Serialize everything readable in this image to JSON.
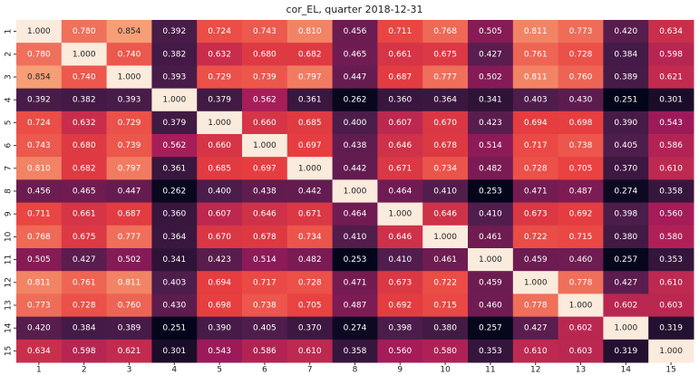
{
  "chart_data": {
    "type": "heatmap",
    "title": "cor_EL, quarter 2018-12-31",
    "categories": [
      "1",
      "2",
      "3",
      "4",
      "5",
      "6",
      "7",
      "8",
      "9",
      "10",
      "11",
      "12",
      "13",
      "14",
      "15"
    ],
    "y_categories": [
      "1",
      "2",
      "3",
      "4",
      "5",
      "6",
      "7",
      "8",
      "9",
      "10",
      "11",
      "12",
      "13",
      "14",
      "15"
    ],
    "colorscale": [
      "#03051a",
      "#4c1d4b",
      "#a11a5b",
      "#e83f3f",
      "#f69c73",
      "#faebdd"
    ],
    "values": [
      [
        1.0,
        0.78,
        0.854,
        0.392,
        0.724,
        0.743,
        0.81,
        0.456,
        0.711,
        0.768,
        0.505,
        0.811,
        0.773,
        0.42,
        0.634
      ],
      [
        0.78,
        1.0,
        0.74,
        0.382,
        0.632,
        0.68,
        0.682,
        0.465,
        0.661,
        0.675,
        0.427,
        0.761,
        0.728,
        0.384,
        0.598
      ],
      [
        0.854,
        0.74,
        1.0,
        0.393,
        0.729,
        0.739,
        0.797,
        0.447,
        0.687,
        0.777,
        0.502,
        0.811,
        0.76,
        0.389,
        0.621
      ],
      [
        0.392,
        0.382,
        0.393,
        1.0,
        0.379,
        0.562,
        0.361,
        0.262,
        0.36,
        0.364,
        0.341,
        0.403,
        0.43,
        0.251,
        0.301
      ],
      [
        0.724,
        0.632,
        0.729,
        0.379,
        1.0,
        0.66,
        0.685,
        0.4,
        0.607,
        0.67,
        0.423,
        0.694,
        0.698,
        0.39,
        0.543
      ],
      [
        0.743,
        0.68,
        0.739,
        0.562,
        0.66,
        1.0,
        0.697,
        0.438,
        0.646,
        0.678,
        0.514,
        0.717,
        0.738,
        0.405,
        0.586
      ],
      [
        0.81,
        0.682,
        0.797,
        0.361,
        0.685,
        0.697,
        1.0,
        0.442,
        0.671,
        0.734,
        0.482,
        0.728,
        0.705,
        0.37,
        0.61
      ],
      [
        0.456,
        0.465,
        0.447,
        0.262,
        0.4,
        0.438,
        0.442,
        1.0,
        0.464,
        0.41,
        0.253,
        0.471,
        0.487,
        0.274,
        0.358
      ],
      [
        0.711,
        0.661,
        0.687,
        0.36,
        0.607,
        0.646,
        0.671,
        0.464,
        1.0,
        0.646,
        0.41,
        0.673,
        0.692,
        0.398,
        0.56
      ],
      [
        0.768,
        0.675,
        0.777,
        0.364,
        0.67,
        0.678,
        0.734,
        0.41,
        0.646,
        1.0,
        0.461,
        0.722,
        0.715,
        0.38,
        0.58
      ],
      [
        0.505,
        0.427,
        0.502,
        0.341,
        0.423,
        0.514,
        0.482,
        0.253,
        0.41,
        0.461,
        1.0,
        0.459,
        0.46,
        0.257,
        0.353
      ],
      [
        0.811,
        0.761,
        0.811,
        0.403,
        0.694,
        0.717,
        0.728,
        0.471,
        0.673,
        0.722,
        0.459,
        1.0,
        0.778,
        0.427,
        0.61
      ],
      [
        0.773,
        0.728,
        0.76,
        0.43,
        0.698,
        0.738,
        0.705,
        0.487,
        0.692,
        0.715,
        0.46,
        0.778,
        1.0,
        0.602,
        0.603
      ],
      [
        0.42,
        0.384,
        0.389,
        0.251,
        0.39,
        0.405,
        0.37,
        0.274,
        0.398,
        0.38,
        0.257,
        0.427,
        0.602,
        1.0,
        0.319
      ],
      [
        0.634,
        0.598,
        0.621,
        0.301,
        0.543,
        0.586,
        0.61,
        0.358,
        0.56,
        0.58,
        0.353,
        0.61,
        0.603,
        0.319,
        1.0
      ]
    ],
    "value_labels": [
      [
        "1.000",
        "0.780",
        "0.854",
        "0.392",
        "0.724",
        "0.743",
        "0.810",
        "0.456",
        "0.711",
        "0.768",
        "0.505",
        "0.811",
        "0.773",
        "0.420",
        "0.634"
      ],
      [
        "0.780",
        "1.000",
        "0.740",
        "0.382",
        "0.632",
        "0.680",
        "0.682",
        "0.465",
        "0.661",
        "0.675",
        "0.427",
        "0.761",
        "0.728",
        "0.384",
        "0.598"
      ],
      [
        "0.854",
        "0.740",
        "1.000",
        "0.393",
        "0.729",
        "0.739",
        "0.797",
        "0.447",
        "0.687",
        "0.777",
        "0.502",
        "0.811",
        "0.760",
        "0.389",
        "0.621"
      ],
      [
        "0.392",
        "0.382",
        "0.393",
        "1.000",
        "0.379",
        "0.562",
        "0.361",
        "0.262",
        "0.360",
        "0.364",
        "0.341",
        "0.403",
        "0.430",
        "0.251",
        "0.301"
      ],
      [
        "0.724",
        "0.632",
        "0.729",
        "0.379",
        "1.000",
        "0.660",
        "0.685",
        "0.400",
        "0.607",
        "0.670",
        "0.423",
        "0.694",
        "0.698",
        "0.390",
        "0.543"
      ],
      [
        "0.743",
        "0.680",
        "0.739",
        "0.562",
        "0.660",
        "1.000",
        "0.697",
        "0.438",
        "0.646",
        "0.678",
        "0.514",
        "0.717",
        "0.738",
        "0.405",
        "0.586"
      ],
      [
        "0.810",
        "0.682",
        "0.797",
        "0.361",
        "0.685",
        "0.697",
        "1.000",
        "0.442",
        "0.671",
        "0.734",
        "0.482",
        "0.728",
        "0.705",
        "0.370",
        "0.610"
      ],
      [
        "0.456",
        "0.465",
        "0.447",
        "0.262",
        "0.400",
        "0.438",
        "0.442",
        "1.000",
        "0.464",
        "0.410",
        "0.253",
        "0.471",
        "0.487",
        "0.274",
        "0.358"
      ],
      [
        "0.711",
        "0.661",
        "0.687",
        "0.360",
        "0.607",
        "0.646",
        "0.671",
        "0.464",
        "1.000",
        "0.646",
        "0.410",
        "0.673",
        "0.692",
        "0.398",
        "0.560"
      ],
      [
        "0.768",
        "0.675",
        "0.777",
        "0.364",
        "0.670",
        "0.678",
        "0.734",
        "0.410",
        "0.646",
        "1.000",
        "0.461",
        "0.722",
        "0.715",
        "0.380",
        "0.580"
      ],
      [
        "0.505",
        "0.427",
        "0.502",
        "0.341",
        "0.423",
        "0.514",
        "0.482",
        "0.253",
        "0.410",
        "0.461",
        "1.000",
        "0.459",
        "0.460",
        "0.257",
        "0.353"
      ],
      [
        "0.811",
        "0.761",
        "0.811",
        "0.403",
        "0.694",
        "0.717",
        "0.728",
        "0.471",
        "0.673",
        "0.722",
        "0.459",
        "1.000",
        "0.778",
        "0.427",
        "0.610"
      ],
      [
        "0.773",
        "0.728",
        "0.760",
        "0.430",
        "0.698",
        "0.738",
        "0.705",
        "0.487",
        "0.692",
        "0.715",
        "0.460",
        "0.778",
        "1.000",
        "0.602",
        "0.603"
      ],
      [
        "0.420",
        "0.384",
        "0.389",
        "0.251",
        "0.390",
        "0.405",
        "0.370",
        "0.274",
        "0.398",
        "0.380",
        "0.257",
        "0.427",
        "0.602",
        "1.000",
        "0.319"
      ],
      [
        "0.634",
        "0.598",
        "0.621",
        "0.301",
        "0.543",
        "0.586",
        "0.610",
        "0.358",
        "0.560",
        "0.580",
        "0.353",
        "0.610",
        "0.603",
        "0.319",
        "1.000"
      ]
    ]
  }
}
